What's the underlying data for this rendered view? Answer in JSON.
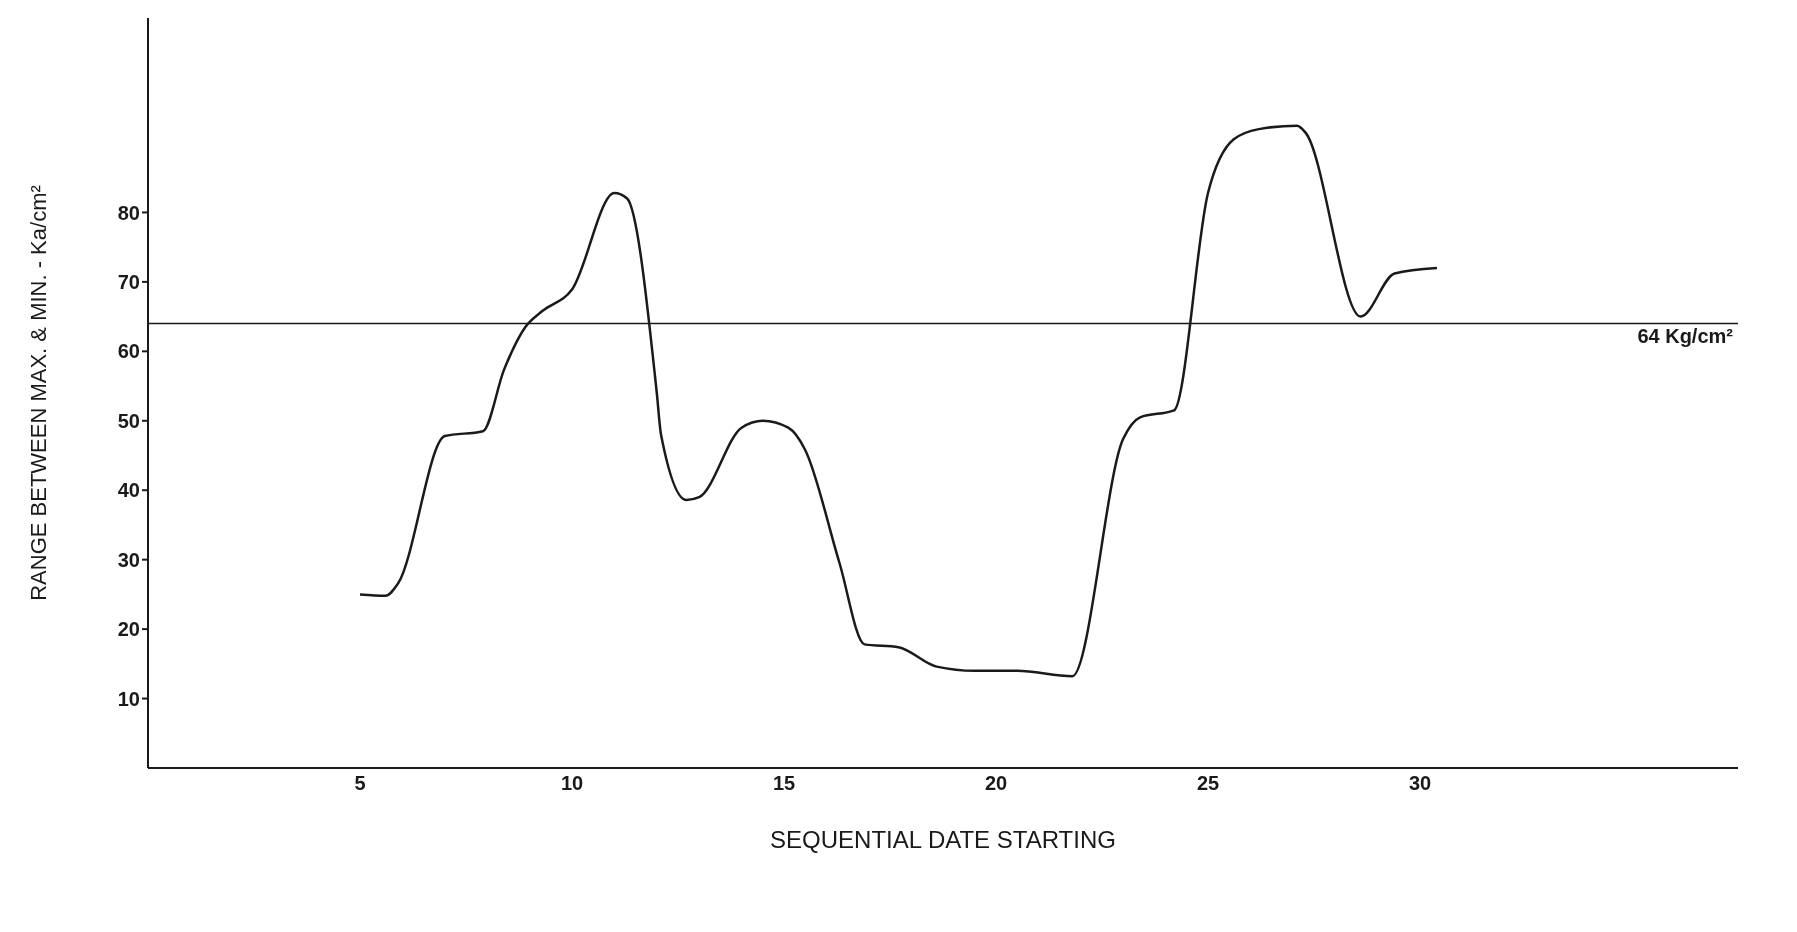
{
  "chart_data": {
    "type": "line",
    "xlabel": "SEQUENTIAL  DATE  STARTING",
    "ylabel": "RANGE  BETWEEN  MAX. & MIN.  -  Ka/cm²",
    "x": [
      5,
      5.6,
      5.9,
      7.0,
      7.9,
      8.4,
      8.9,
      9.3,
      10.0,
      11.0,
      11.3,
      12.0,
      12.1,
      12.7,
      13.0,
      14.0,
      14.5,
      15.1,
      15.5,
      16.3,
      16.9,
      17.7,
      18.6,
      19.5,
      20.5,
      21.8,
      23.0,
      23.4,
      24.2,
      25.0,
      25.6,
      26.2,
      27.1,
      27.3,
      28.6,
      29.4,
      30.4
    ],
    "series": [
      {
        "color": "#1a1a1a",
        "values": [
          25,
          24.8,
          26.6,
          47.8,
          48.5,
          57.4,
          63.5,
          65.8,
          68.9,
          82.8,
          82,
          54,
          48,
          38.6,
          39,
          49,
          50,
          49,
          45.8,
          29.7,
          17.8,
          17.4,
          14.6,
          14,
          14,
          13.2,
          47.4,
          50.5,
          51.5,
          82.8,
          90.5,
          92,
          92.5,
          91.5,
          65,
          71.2,
          72
        ]
      }
    ],
    "xlim": [
      0,
      37.5
    ],
    "xticks": [
      5,
      10,
      15,
      20,
      25,
      30
    ],
    "ylim": [
      0,
      108
    ],
    "yticks": [
      10,
      20,
      30,
      40,
      50,
      60,
      70,
      80
    ],
    "ref_lines": [
      {
        "axis": "y",
        "value": 64,
        "label": "64 Kg/cm²",
        "color": "#1a1a1a"
      }
    ],
    "grid": false,
    "legend": false,
    "marker": "none",
    "line_style": "solid"
  }
}
